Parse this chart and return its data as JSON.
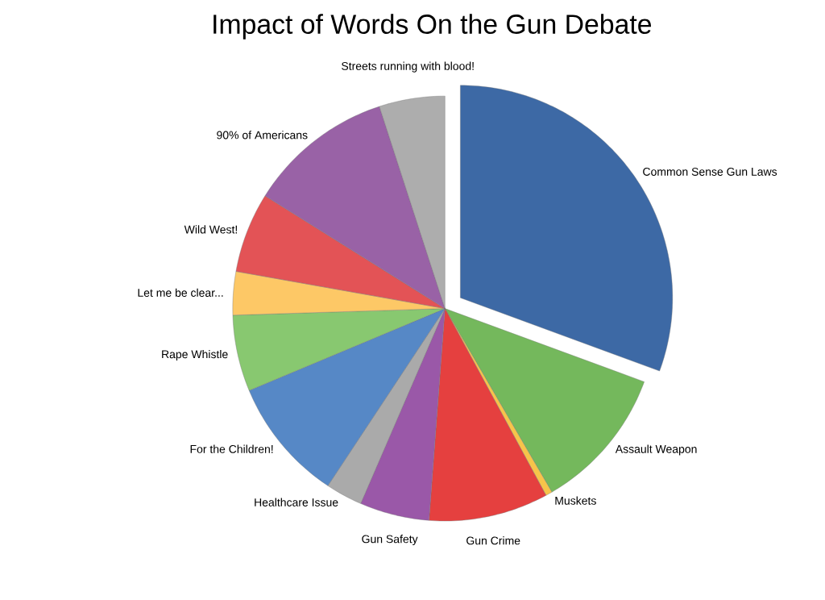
{
  "chart_data": {
    "type": "pie",
    "title": "Impact of Words On the Gun Debate",
    "categories": [
      "Common Sense Gun Laws",
      "Assault Weapon",
      "Muskets",
      "Gun Crime",
      "Gun Safety",
      "Healthcare Issue",
      "For the Children!",
      "Rape Whistle",
      "Let me be clear...",
      "Wild West!",
      "90% of Americans",
      "Streets running with blood!"
    ],
    "values": [
      30.6,
      11,
      0.5,
      9.1,
      5.3,
      2.8,
      9.4,
      5.8,
      3.3,
      6.1,
      11.1,
      5
    ],
    "colors": [
      "#3d69a5",
      "#74b85c",
      "#f7c44a",
      "#e5403f",
      "#9a58a8",
      "#aaaaaa",
      "#5688c6",
      "#88c870",
      "#fdc866",
      "#e35356",
      "#9962a6",
      "#adadad"
    ]
  }
}
